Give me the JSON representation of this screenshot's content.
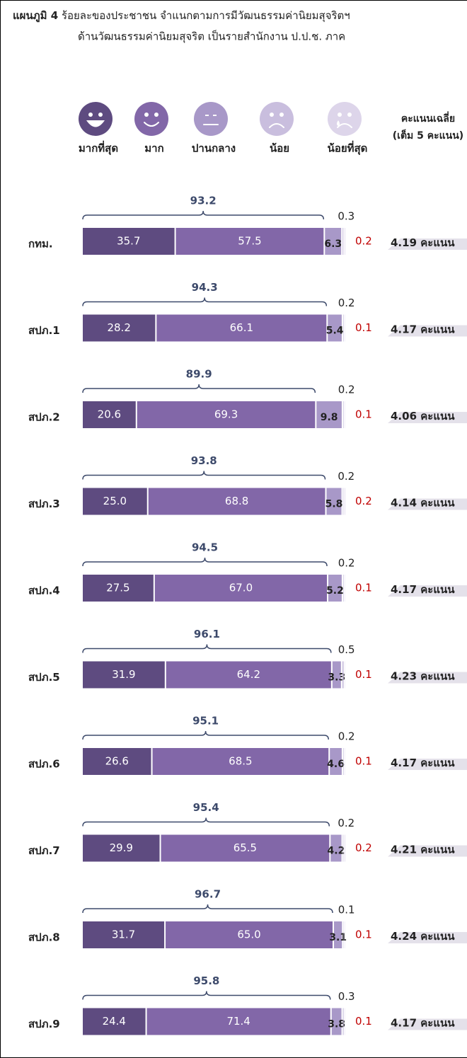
{
  "chart_data": {
    "type": "bar",
    "orientation": "horizontal",
    "stacked": true,
    "title_label": "แผนภูมิ 4",
    "title": "ร้อยละของประชาชน จำแนกตามการมีวัฒนธรรมค่านิยมสุจริตฯ",
    "subtitle": "ด้านวัฒนธรรมค่านิยมสุจริต  เป็นรายสำนักงาน ป.ป.ช. ภาค",
    "categories": [
      "กทม.",
      "สปภ.1",
      "สปภ.2",
      "สปภ.3",
      "สปภ.4",
      "สปภ.5",
      "สปภ.6",
      "สปภ.7",
      "สปภ.8",
      "สปภ.9"
    ],
    "xlim": [
      0,
      100
    ],
    "series": [
      {
        "name": "มากที่สุด",
        "color": "#5e4b80",
        "values": [
          35.7,
          28.2,
          20.6,
          25.0,
          27.5,
          31.9,
          26.6,
          29.9,
          31.7,
          24.4
        ],
        "value_labels": [
          "35.7",
          "28.2",
          "20.6",
          "25.0",
          "27.5",
          "31.9",
          "26.6",
          "29.9",
          "31.7",
          "24.4"
        ]
      },
      {
        "name": "มาก",
        "color": "#8267a8",
        "values": [
          57.5,
          66.1,
          69.3,
          68.8,
          67.0,
          64.2,
          68.5,
          65.5,
          65.0,
          71.4
        ],
        "value_labels": [
          "57.5",
          "66.1",
          "69.3",
          "68.8",
          "67.0",
          "64.2",
          "68.5",
          "65.5",
          "65.0",
          "71.4"
        ]
      },
      {
        "name": "ปานกลาง",
        "color": "#a898c8",
        "values": [
          6.3,
          5.4,
          9.8,
          5.8,
          5.2,
          3.3,
          4.6,
          4.2,
          3.1,
          3.8
        ],
        "value_labels": [
          "6.3",
          "5.4",
          "9.8",
          "5.8",
          "5.2",
          "3.3",
          "4.6",
          "4.2",
          "3.1",
          "3.8"
        ]
      },
      {
        "name": "น้อย",
        "color": "#c9bede",
        "values": [
          0.3,
          0.2,
          0.2,
          0.2,
          0.2,
          0.5,
          0.2,
          0.2,
          0.1,
          0.3
        ],
        "value_labels": [
          "0.3",
          "0.2",
          "0.2",
          "0.2",
          "0.2",
          "0.5",
          "0.2",
          "0.2",
          "0.1",
          "0.3"
        ]
      },
      {
        "name": "น้อยที่สุด",
        "color": "#ddd5ea",
        "values": [
          0.2,
          0.1,
          0.1,
          0.2,
          0.1,
          0.1,
          0.1,
          0.2,
          0.1,
          0.1
        ],
        "value_labels": [
          "0.2",
          "0.1",
          "0.1",
          "0.2",
          "0.1",
          "0.1",
          "0.1",
          "0.2",
          "0.1",
          "0.1"
        ]
      }
    ],
    "totals": {
      "values": [
        93.2,
        94.3,
        89.9,
        93.8,
        94.5,
        96.1,
        95.1,
        95.4,
        96.7,
        95.8
      ]
    },
    "score_header": [
      "คะแนนเฉลี่ย",
      "(เต็ม 5 คะแนน)"
    ],
    "scores": {
      "values": [
        4.19,
        4.17,
        4.06,
        4.14,
        4.17,
        4.23,
        4.17,
        4.21,
        4.24,
        4.17
      ],
      "unit": "คะแนน"
    }
  }
}
